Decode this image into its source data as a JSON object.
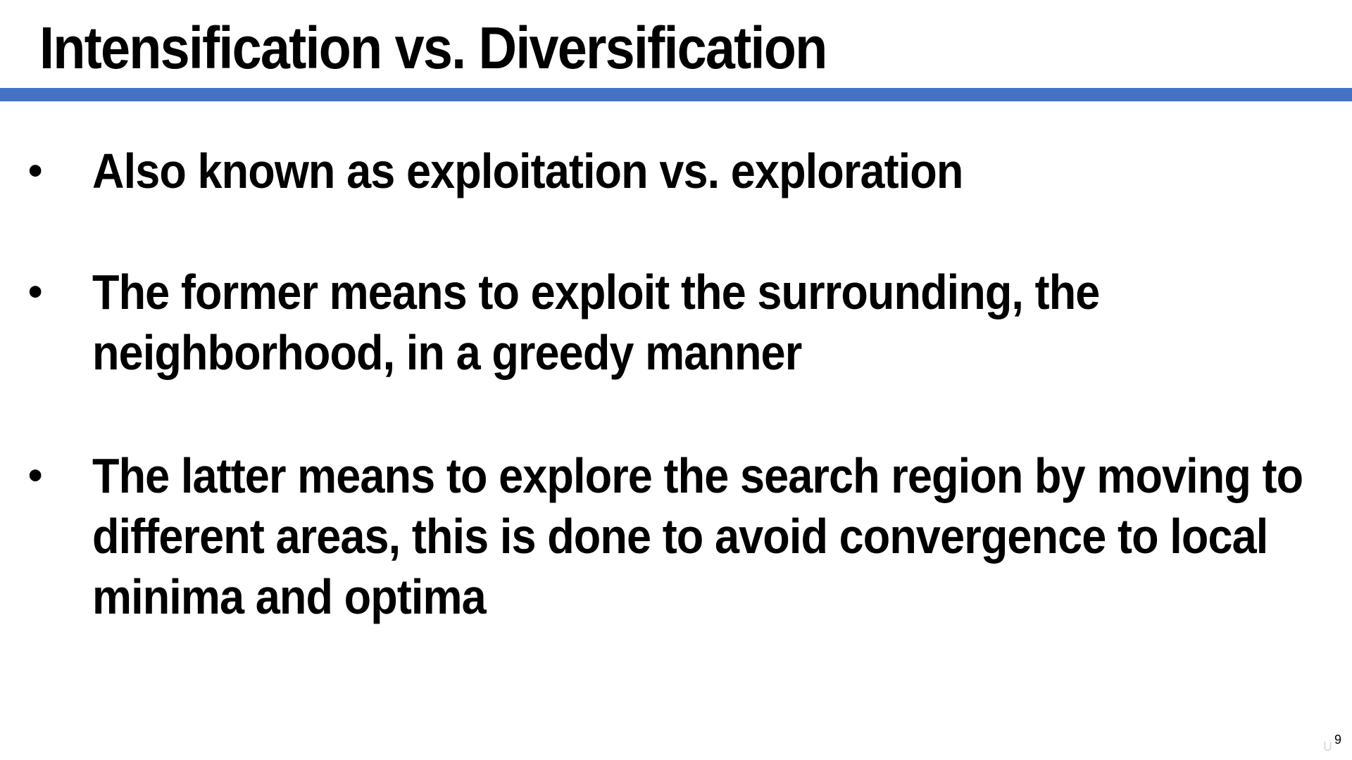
{
  "slide": {
    "title": "Intensification vs. Diversification",
    "accent_color": "#4472C4",
    "bullets": [
      {
        "lines": [
          "Also known as exploitation vs. exploration"
        ]
      },
      {
        "lines": [
          "The former means to exploit the surrounding, the",
          "neighborhood, in a greedy manner"
        ]
      },
      {
        "lines": [
          "The latter means to explore the search region by moving to",
          "different areas, this is done to avoid convergence to local",
          "minima and optima"
        ]
      }
    ],
    "bullet_symbol": "•",
    "page_number": "9"
  }
}
